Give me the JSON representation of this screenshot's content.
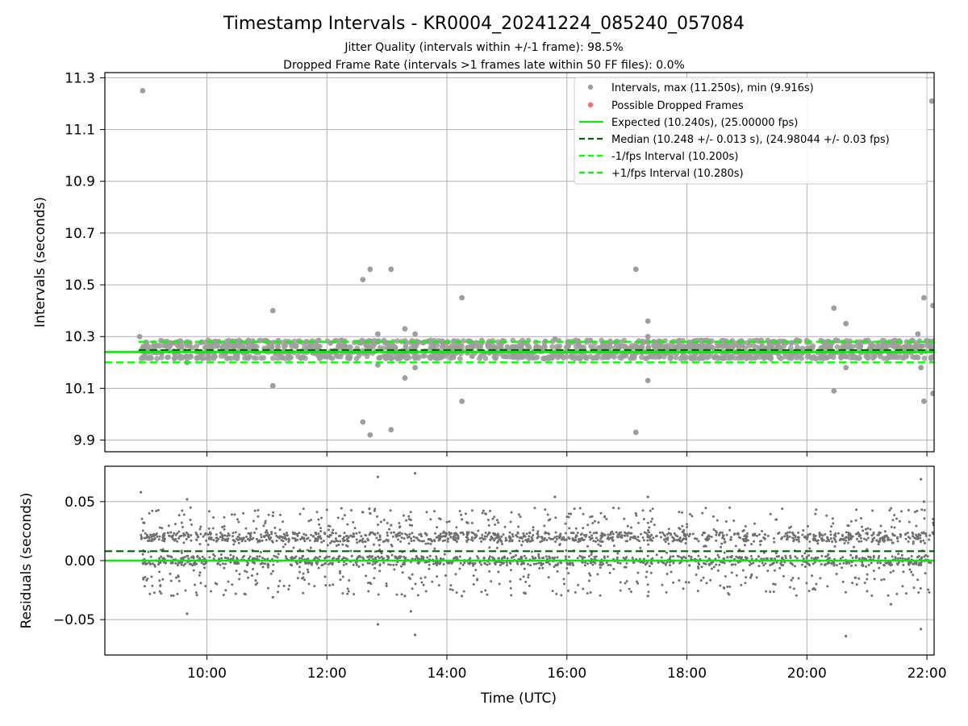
{
  "chart_data": [
    {
      "type": "scatter",
      "title": "Timestamp Intervals - KR0004_20241224_085240_057084",
      "subtitle_lines": [
        "Jitter Quality (intervals within +/-1 frame): 98.5%",
        "Dropped Frame Rate (intervals >1 frames late within 50 FF files): 0.0%"
      ],
      "xlabel": "",
      "ylabel": "Intervals (seconds)",
      "xlim": [
        8.3,
        22.12
      ],
      "ylim": [
        9.855,
        11.32
      ],
      "yticks": [
        9.9,
        10.1,
        10.3,
        10.5,
        10.7,
        10.9,
        11.1,
        11.3
      ],
      "ytick_labels": [
        "9.9",
        "10.1",
        "10.3",
        "10.5",
        "10.7",
        "10.9",
        "11.1",
        "11.3"
      ],
      "xticks": [
        10,
        12,
        14,
        16,
        18,
        20,
        22
      ],
      "grid": true,
      "legend_position": "top-right",
      "legend": [
        "Intervals, max (11.250s), min (9.916s)",
        "Possible Dropped Frames",
        "Expected (10.240s), (25.00000 fps)",
        "Median (10.248 +/- 0.013 s), (24.98044 +/- 0.03 fps)",
        "-1/fps Interval (10.200s)",
        "+1/fps Interval (10.280s)"
      ],
      "reference_lines": {
        "expected": 10.24,
        "median": 10.248,
        "minus_1fps": 10.2,
        "plus_1fps": 10.28
      },
      "series": [
        {
          "name": "Intervals, max (11.250s), min (9.916s)",
          "points": [
            [
              8.93,
              11.25
            ],
            [
              8.88,
              10.3
            ],
            [
              9.67,
              10.2
            ],
            [
              10.2,
              10.28
            ],
            [
              11.1,
              10.4
            ],
            [
              11.1,
              10.11
            ],
            [
              12.6,
              10.52
            ],
            [
              12.6,
              9.97
            ],
            [
              12.72,
              10.56
            ],
            [
              12.72,
              9.92
            ],
            [
              12.85,
              10.31
            ],
            [
              12.85,
              10.19
            ],
            [
              13.07,
              10.56
            ],
            [
              13.07,
              9.94
            ],
            [
              13.3,
              10.33
            ],
            [
              13.3,
              10.14
            ],
            [
              13.47,
              10.31
            ],
            [
              13.47,
              10.18
            ],
            [
              14.25,
              10.45
            ],
            [
              14.25,
              10.05
            ],
            [
              15.8,
              10.29
            ],
            [
              17.15,
              10.56
            ],
            [
              17.15,
              9.93
            ],
            [
              17.35,
              10.36
            ],
            [
              17.35,
              10.13
            ],
            [
              17.35,
              10.3
            ],
            [
              20.45,
              10.41
            ],
            [
              20.45,
              10.09
            ],
            [
              20.65,
              10.35
            ],
            [
              20.65,
              10.18
            ],
            [
              21.85,
              10.31
            ],
            [
              21.9,
              10.18
            ],
            [
              21.95,
              10.45
            ],
            [
              21.95,
              10.05
            ],
            [
              22.08,
              11.21
            ],
            [
              22.1,
              10.42
            ],
            [
              22.1,
              10.08
            ]
          ],
          "dense_band": {
            "x_range": [
              8.9,
              22.12
            ],
            "intervals": [
              10.22,
              10.24,
              10.26,
              10.28
            ]
          }
        },
        {
          "name": "Possible Dropped Frames",
          "points": []
        }
      ]
    },
    {
      "type": "scatter",
      "title": "",
      "xlabel": "Time (UTC)",
      "ylabel": "Residuals (seconds)",
      "xlim": [
        8.3,
        22.12
      ],
      "ylim": [
        -0.08,
        0.08
      ],
      "yticks": [
        -0.05,
        0.0,
        0.05
      ],
      "ytick_labels": [
        "−0.05",
        "0.00",
        "0.05"
      ],
      "xticks": [
        10,
        12,
        14,
        16,
        18,
        20,
        22
      ],
      "xtick_labels": [
        "10:00",
        "12:00",
        "14:00",
        "16:00",
        "18:00",
        "20:00",
        "22:00"
      ],
      "grid": true,
      "reference_lines": {
        "zero": 0.0,
        "median_offset": 0.008
      },
      "series": [
        {
          "name": "",
          "points": [
            [
              8.9,
              0.058
            ],
            [
              9.67,
              0.052
            ],
            [
              9.67,
              -0.045
            ],
            [
              11.1,
              0.038
            ],
            [
              11.1,
              -0.031
            ],
            [
              12.6,
              0.041
            ],
            [
              12.72,
              0.04
            ],
            [
              12.85,
              0.071
            ],
            [
              12.85,
              -0.054
            ],
            [
              13.07,
              0.03
            ],
            [
              13.3,
              -0.03
            ],
            [
              13.47,
              0.074
            ],
            [
              13.47,
              -0.063
            ],
            [
              13.4,
              -0.043
            ],
            [
              14.25,
              0.035
            ],
            [
              14.25,
              -0.03
            ],
            [
              15.8,
              0.054
            ],
            [
              17.15,
              0.04
            ],
            [
              17.35,
              0.054
            ],
            [
              17.35,
              -0.03
            ],
            [
              20.65,
              -0.064
            ],
            [
              21.4,
              -0.037
            ],
            [
              21.9,
              0.069
            ],
            [
              21.9,
              -0.058
            ],
            [
              21.95,
              0.05
            ]
          ],
          "dense_band": {
            "x_range": [
              8.9,
              22.12
            ],
            "residual_range": [
              -0.03,
              0.045
            ]
          }
        }
      ]
    }
  ],
  "colors": {
    "scatter": "#9e9e9e",
    "residual": "#707070",
    "dropped": "#ff6b6b",
    "expected": "#00ee00",
    "median": "#006400",
    "fps_bounds": "#00ff00",
    "grid": "#b0b0b0"
  }
}
